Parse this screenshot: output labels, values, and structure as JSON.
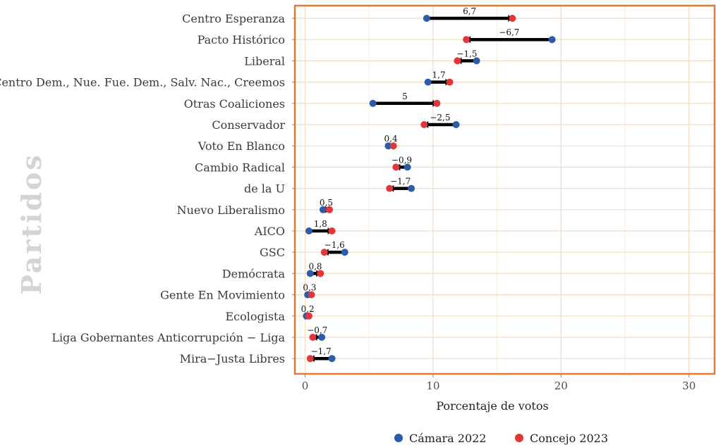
{
  "chart_data": {
    "type": "dumbbell",
    "xlabel": "Porcentaje de votos",
    "ylabel": "Partidos",
    "xlim": [
      -0.8,
      32
    ],
    "xticks": [
      0,
      10,
      20,
      30
    ],
    "grid": true,
    "legend_position": "bottom",
    "series": [
      {
        "name": "Cámara 2022",
        "color": "#2c5ca8"
      },
      {
        "name": "Concejo 2023",
        "color": "#e3363a"
      }
    ],
    "rows": [
      {
        "party": "Centro Esperanza",
        "camara": 9.5,
        "concejo": 16.2,
        "diff": "6,7"
      },
      {
        "party": "Pacto Histórico",
        "camara": 19.3,
        "concejo": 12.6,
        "diff": "−6,7"
      },
      {
        "party": "Liberal",
        "camara": 13.4,
        "concejo": 11.9,
        "diff": "−1,5"
      },
      {
        "party": "Centro Dem., Nue. Fue. Dem., Salv. Nac., Creemos",
        "camara": 9.6,
        "concejo": 11.3,
        "diff": "1,7"
      },
      {
        "party": "Otras Coaliciones",
        "camara": 5.3,
        "concejo": 10.3,
        "diff": "5"
      },
      {
        "party": "Conservador",
        "camara": 11.8,
        "concejo": 9.3,
        "diff": "−2,5"
      },
      {
        "party": "Voto En Blanco",
        "camara": 6.5,
        "concejo": 6.9,
        "diff": "0,4"
      },
      {
        "party": "Cambio Radical",
        "camara": 8.0,
        "concejo": 7.1,
        "diff": "−0,9"
      },
      {
        "party": "de la U",
        "camara": 8.3,
        "concejo": 6.6,
        "diff": "−1,7"
      },
      {
        "party": "Nuevo Liberalismo",
        "camara": 1.4,
        "concejo": 1.9,
        "diff": "0,5"
      },
      {
        "party": "AICO",
        "camara": 0.3,
        "concejo": 2.1,
        "diff": "1,8"
      },
      {
        "party": "GSC",
        "camara": 3.1,
        "concejo": 1.5,
        "diff": "−1,6"
      },
      {
        "party": "Demócrata",
        "camara": 0.4,
        "concejo": 1.2,
        "diff": "0,8"
      },
      {
        "party": "Gente En Movimiento",
        "camara": 0.2,
        "concejo": 0.5,
        "diff": "0,3"
      },
      {
        "party": "Ecologista",
        "camara": 0.1,
        "concejo": 0.3,
        "diff": "0,2"
      },
      {
        "party": "Liga Gobernantes Anticorrupción − Liga",
        "camara": 1.3,
        "concejo": 0.6,
        "diff": "−0,7"
      },
      {
        "party": "Mira−Justa Libres",
        "camara": 2.1,
        "concejo": 0.4,
        "diff": "−1,7"
      }
    ]
  }
}
